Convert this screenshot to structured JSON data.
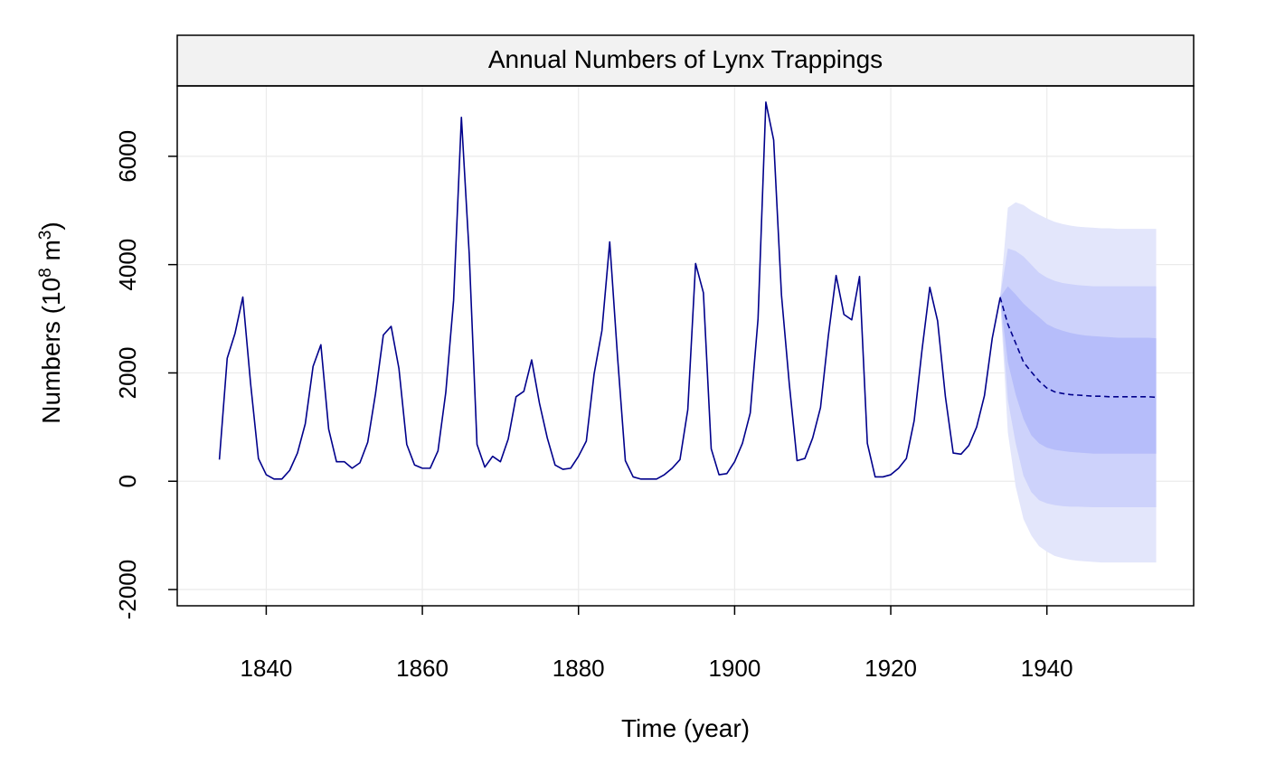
{
  "chart_data": {
    "type": "line",
    "title": "Annual Numbers of Lynx Trappings",
    "xlabel": "Time (year)",
    "ylabel": {
      "prefix": "Numbers (10",
      "exp1": "8",
      "mid": " m",
      "exp2": "3",
      "suffix": ")"
    },
    "xlim": [
      1828.6,
      1958.8
    ],
    "ylim": [
      -2300,
      7300
    ],
    "x_ticks": [
      1840,
      1860,
      1880,
      1900,
      1920,
      1940
    ],
    "y_ticks": [
      -2000,
      0,
      2000,
      4000,
      6000
    ],
    "grid": true,
    "observed": {
      "x_start": 1834,
      "values": [
        400,
        2270,
        2730,
        3400,
        1800,
        420,
        120,
        40,
        40,
        200,
        520,
        1060,
        2120,
        2520,
        960,
        360,
        360,
        240,
        340,
        720,
        1620,
        2700,
        2860,
        2080,
        680,
        300,
        240,
        240,
        560,
        1640,
        3340,
        6720,
        4200,
        680,
        260,
        460,
        360,
        780,
        1560,
        1660,
        2240,
        1440,
        800,
        300,
        220,
        240,
        460,
        740,
        1980,
        2780,
        4420,
        2300,
        380,
        80,
        40,
        40,
        40,
        120,
        240,
        400,
        1320,
        4020,
        3480,
        600,
        120,
        140,
        360,
        700,
        1260,
        3000,
        7000,
        6300,
        3440,
        1800,
        380,
        420,
        800,
        1360,
        2680,
        3800,
        3080,
        2980,
        3780,
        700,
        80,
        80,
        120,
        240,
        420,
        1120,
        2420,
        3580,
        2960,
        1560,
        520,
        500,
        660,
        1000,
        1580,
        2640,
        3380
      ],
      "color": "#00008B"
    },
    "forecast": {
      "x": [
        1934,
        1935,
        1936,
        1937,
        1938,
        1939,
        1940,
        1941,
        1942,
        1943,
        1944,
        1945,
        1946,
        1947,
        1948,
        1949,
        1950,
        1951,
        1952,
        1953,
        1954
      ],
      "mean": [
        3400,
        2900,
        2550,
        2200,
        2020,
        1850,
        1720,
        1650,
        1620,
        1600,
        1590,
        1580,
        1570,
        1570,
        1560,
        1560,
        1560,
        1560,
        1560,
        1560,
        1550
      ],
      "lo80": [
        3400,
        2200,
        1600,
        1150,
        850,
        700,
        620,
        580,
        560,
        540,
        530,
        520,
        510,
        510,
        510,
        510,
        510,
        510,
        510,
        510,
        510
      ],
      "hi80": [
        3400,
        3600,
        3450,
        3280,
        3150,
        3030,
        2900,
        2830,
        2780,
        2740,
        2710,
        2690,
        2680,
        2670,
        2660,
        2650,
        2650,
        2650,
        2650,
        2650,
        2640
      ],
      "lo95": [
        3400,
        1500,
        700,
        100,
        -200,
        -350,
        -410,
        -440,
        -460,
        -470,
        -470,
        -475,
        -480,
        -480,
        -480,
        -480,
        -480,
        -480,
        -480,
        -480,
        -480
      ],
      "hi95": [
        3400,
        4300,
        4250,
        4150,
        4000,
        3850,
        3760,
        3700,
        3660,
        3640,
        3620,
        3610,
        3600,
        3600,
        3600,
        3600,
        3600,
        3600,
        3600,
        3600,
        3600
      ],
      "lo99": [
        3400,
        900,
        -100,
        -700,
        -1000,
        -1200,
        -1300,
        -1380,
        -1420,
        -1450,
        -1470,
        -1480,
        -1490,
        -1500,
        -1500,
        -1500,
        -1500,
        -1500,
        -1500,
        -1500,
        -1500
      ],
      "hi99": [
        3400,
        5050,
        5150,
        5100,
        5000,
        4920,
        4850,
        4790,
        4750,
        4720,
        4700,
        4690,
        4680,
        4670,
        4670,
        4660,
        4660,
        4660,
        4660,
        4660,
        4660
      ],
      "mean_color": "#00008B",
      "band_colors": [
        "#E3E6FB",
        "#CDD2FB",
        "#B6BDFA"
      ]
    },
    "strip_color": "#F2F2F2",
    "grid_color": "#EBEBEB"
  }
}
